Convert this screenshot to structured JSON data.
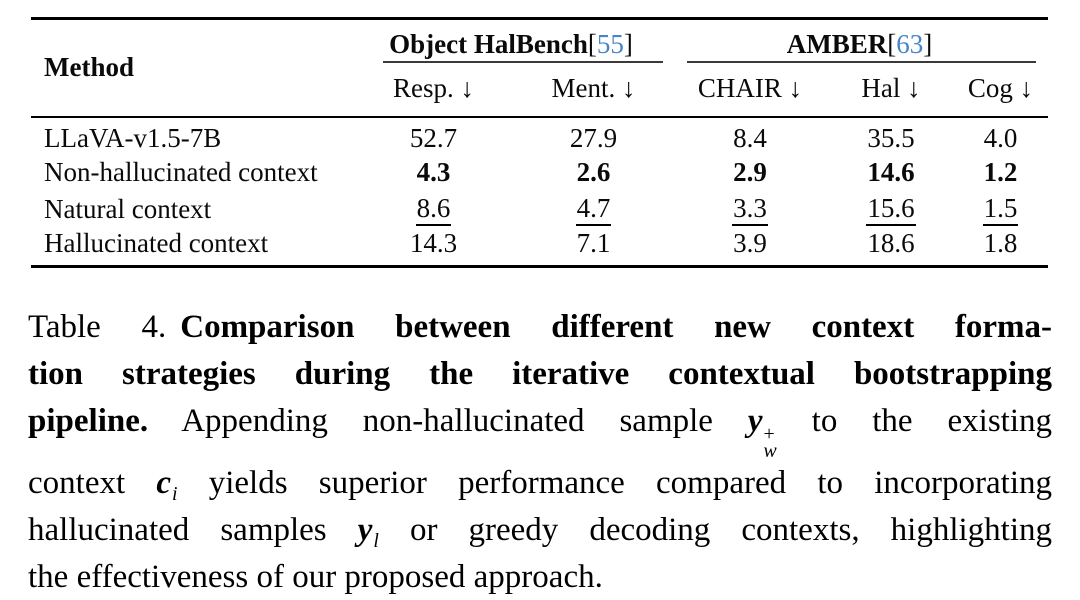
{
  "colors": {
    "citation_blue": "#4585c7",
    "text": "#0a0a0a",
    "rule": "#000000"
  },
  "table": {
    "method_header": "Method",
    "groups": [
      {
        "name": "Object HalBench",
        "cite_open": "[",
        "cite_num": "55",
        "cite_close": "]",
        "span": 2
      },
      {
        "name": "AMBER",
        "cite_open": "[",
        "cite_num": "63",
        "cite_close": "]",
        "span": 3
      }
    ],
    "columns": [
      {
        "key": "resp",
        "label": "Resp. ↓"
      },
      {
        "key": "ment",
        "label": "Ment. ↓"
      },
      {
        "key": "chair",
        "label": "CHAIR ↓"
      },
      {
        "key": "hal",
        "label": "Hal ↓"
      },
      {
        "key": "cog",
        "label": "Cog ↓"
      }
    ],
    "rows": [
      {
        "method": "LLaVA-v1.5-7B",
        "values": [
          "52.7",
          "27.9",
          "8.4",
          "35.5",
          "4.0"
        ],
        "emphasis": "none"
      },
      {
        "method": "Non-hallucinated context",
        "values": [
          "4.3",
          "2.6",
          "2.9",
          "14.6",
          "1.2"
        ],
        "emphasis": "bold"
      },
      {
        "method": "Natural context",
        "values": [
          "8.6",
          "4.7",
          "3.3",
          "15.6",
          "1.5"
        ],
        "emphasis": "underline"
      },
      {
        "method": "Hallucinated context",
        "values": [
          "14.3",
          "7.1",
          "3.9",
          "18.6",
          "1.8"
        ],
        "emphasis": "none"
      }
    ]
  },
  "caption": {
    "lines": [
      {
        "seg": [
          {
            "s": "r",
            "t": "Table 4."
          },
          {
            "s": "gap"
          },
          {
            "s": "b",
            "t": "Comparison between different new context forma-"
          }
        ]
      },
      {
        "seg": [
          {
            "s": "b",
            "t": "tion strategies during the iterative contextual bootstrapping"
          }
        ]
      },
      {
        "seg": [
          {
            "s": "b",
            "t": "pipeline."
          },
          {
            "s": "r",
            "t": " Appending non-hallucinated sample "
          },
          {
            "s": "m",
            "base": "y",
            "sup": "+",
            "sub": "w"
          },
          {
            "s": "r",
            "t": " to the existing"
          }
        ]
      },
      {
        "seg": [
          {
            "s": "r",
            "t": "context "
          },
          {
            "s": "m",
            "base": "c",
            "sub": "i"
          },
          {
            "s": "r",
            "t": " yields superior performance compared to incorporating"
          }
        ]
      },
      {
        "seg": [
          {
            "s": "r",
            "t": "hallucinated samples "
          },
          {
            "s": "m",
            "base": "y",
            "sub": "l"
          },
          {
            "s": "r",
            "t": " or greedy decoding contexts, highlighting"
          }
        ]
      },
      {
        "seg": [
          {
            "s": "r",
            "t": "the effectiveness of our proposed approach."
          }
        ],
        "last": true
      }
    ]
  }
}
